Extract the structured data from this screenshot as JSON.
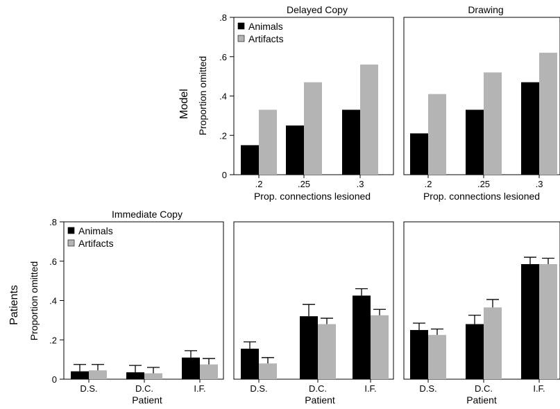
{
  "row_labels": {
    "model": "Model",
    "patients": "Patients"
  },
  "colors": {
    "animals": "#000000",
    "artifacts": "#b4b4b4"
  },
  "chart_data": [
    {
      "id": "model-delayed",
      "type": "bar",
      "title": "Delayed Copy",
      "ylabel": "Proportion omitted",
      "xlabel": "Prop. connections lesioned",
      "categories": [
        ".2",
        ".25",
        ".3"
      ],
      "ylim": [
        0,
        0.8
      ],
      "yticks": [
        0,
        0.2,
        0.4,
        0.6,
        0.8
      ],
      "ytick_labels": [
        "0",
        ".2",
        ".4",
        ".6",
        ".8"
      ],
      "legend": "top-left",
      "series": [
        {
          "name": "Animals",
          "values": [
            0.15,
            0.25,
            0.33
          ]
        },
        {
          "name": "Artifacts",
          "values": [
            0.33,
            0.47,
            0.56
          ]
        }
      ]
    },
    {
      "id": "model-drawing",
      "type": "bar",
      "title": "Drawing",
      "ylabel": "",
      "xlabel": "Prop. connections lesioned",
      "categories": [
        ".2",
        ".25",
        ".3"
      ],
      "ylim": [
        0,
        0.8
      ],
      "series": [
        {
          "values": [
            0.21,
            0.33,
            0.47
          ]
        },
        {
          "values": [
            0.41,
            0.52,
            0.62
          ]
        }
      ]
    },
    {
      "id": "patients-immediate",
      "type": "bar",
      "title": "Immediate Copy",
      "ylabel": "Proportion omitted",
      "xlabel": "Patient",
      "categories": [
        "D.S.",
        "D.C.",
        "I.F."
      ],
      "ylim": [
        0,
        0.8
      ],
      "yticks": [
        0,
        0.2,
        0.4,
        0.6,
        0.8
      ],
      "ytick_labels": [
        "0",
        ".2",
        ".4",
        ".6",
        ".8"
      ],
      "legend": "top-left",
      "series": [
        {
          "name": "Animals",
          "values": [
            0.04,
            0.035,
            0.11
          ],
          "errors": [
            0.035,
            0.035,
            0.035
          ]
        },
        {
          "name": "Artifacts",
          "values": [
            0.045,
            0.03,
            0.075
          ],
          "errors": [
            0.03,
            0.03,
            0.03
          ]
        }
      ]
    },
    {
      "id": "patients-delayed",
      "type": "bar",
      "title": "",
      "ylabel": "",
      "xlabel": "Patient",
      "categories": [
        "D.S.",
        "D.C.",
        "I.F."
      ],
      "ylim": [
        0,
        0.8
      ],
      "series": [
        {
          "values": [
            0.155,
            0.32,
            0.425
          ],
          "errors": [
            0.035,
            0.06,
            0.035
          ]
        },
        {
          "values": [
            0.08,
            0.28,
            0.325
          ],
          "errors": [
            0.03,
            0.03,
            0.03
          ]
        }
      ]
    },
    {
      "id": "patients-drawing",
      "type": "bar",
      "title": "",
      "ylabel": "",
      "xlabel": "Patient",
      "categories": [
        "D.S.",
        "D.C.",
        "I.F."
      ],
      "ylim": [
        0,
        0.8
      ],
      "series": [
        {
          "values": [
            0.25,
            0.28,
            0.585
          ],
          "errors": [
            0.035,
            0.045,
            0.035
          ]
        },
        {
          "values": [
            0.225,
            0.365,
            0.585
          ],
          "errors": [
            0.03,
            0.04,
            0.03
          ]
        }
      ]
    }
  ]
}
